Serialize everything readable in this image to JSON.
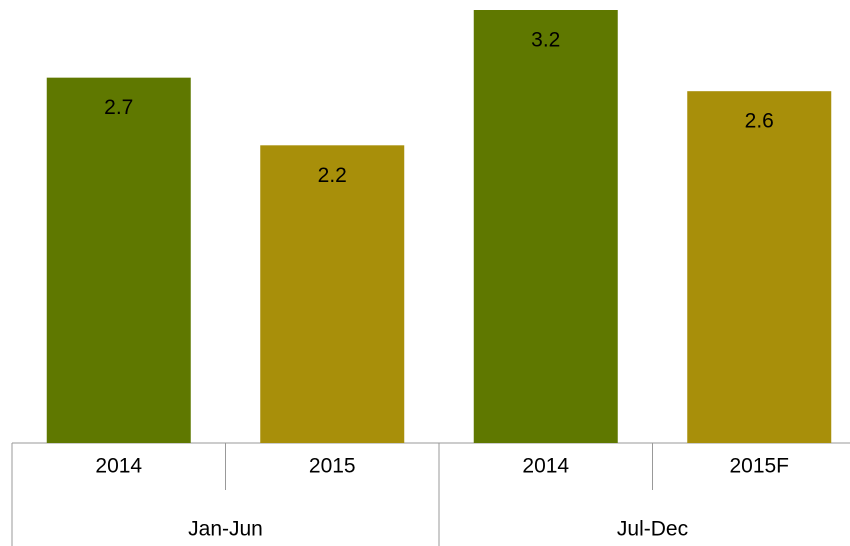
{
  "chart_data": {
    "type": "bar",
    "categories": [
      "2014",
      "2015",
      "2014",
      "2015F"
    ],
    "groups": [
      {
        "name": "Jan-Jun",
        "size": 2
      },
      {
        "name": "Jul-Dec",
        "size": 2
      }
    ],
    "values": [
      2.7,
      2.2,
      3.2,
      2.6
    ],
    "colors": [
      "#5f7800",
      "#a88f0a",
      "#5f7800",
      "#a88f0a"
    ]
  }
}
